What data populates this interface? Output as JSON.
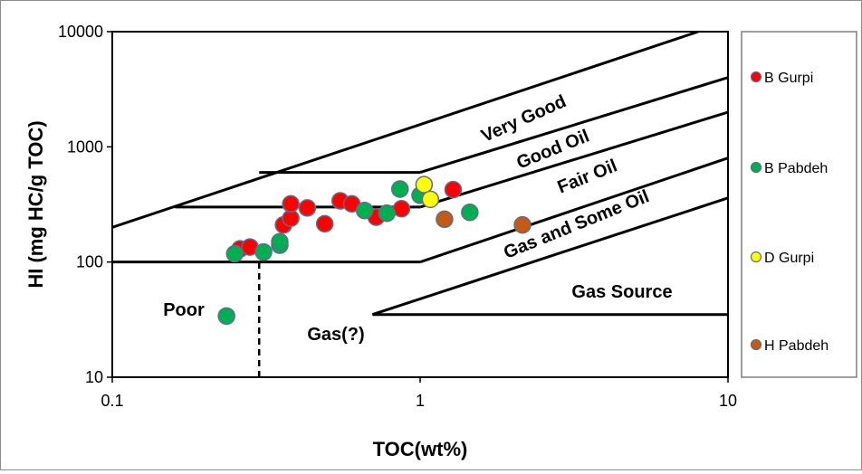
{
  "chart_data": {
    "type": "scatter",
    "title": "",
    "xlabel": "TOC(wt%)",
    "ylabel": "HI (mg HC/g TOC)",
    "x_scale": "log",
    "y_scale": "log",
    "xlim": [
      0.1,
      10
    ],
    "ylim": [
      10,
      10000
    ],
    "x_ticks": [
      0.1,
      1,
      10
    ],
    "x_tick_labels": [
      "0.1",
      "1",
      "10"
    ],
    "y_ticks": [
      10,
      100,
      1000,
      10000
    ],
    "y_tick_labels": [
      "10",
      "100",
      "1000",
      "10000"
    ],
    "grid": false,
    "legend_position": "right",
    "series": [
      {
        "name": "B Gurpi",
        "color": "#ff0000",
        "x": [
          0.26,
          0.28,
          0.36,
          0.38,
          0.38,
          0.43,
          0.49,
          0.55,
          0.6,
          0.72,
          0.87,
          1.28
        ],
        "y": [
          130,
          135,
          210,
          240,
          320,
          295,
          215,
          340,
          320,
          245,
          290,
          425
        ]
      },
      {
        "name": "B Pabdeh",
        "color": "#00b050",
        "x": [
          0.235,
          0.25,
          0.31,
          0.35,
          0.35,
          0.66,
          0.78,
          0.86,
          1.0,
          1.45
        ],
        "y": [
          34,
          118,
          122,
          140,
          150,
          280,
          265,
          430,
          380,
          270
        ]
      },
      {
        "name": "D Gurpi",
        "color": "#ffff00",
        "x": [
          1.03,
          1.08
        ],
        "y": [
          470,
          350
        ]
      },
      {
        "name": "H Pabdeh",
        "color": "#c55a11",
        "x": [
          1.2,
          2.15
        ],
        "y": [
          235,
          210
        ]
      }
    ],
    "annotations": [
      {
        "text": "Very Good"
      },
      {
        "text": "Good Oil"
      },
      {
        "text": "Fair Oil"
      },
      {
        "text": "Gas and Some Oil"
      },
      {
        "text": "Gas Source"
      },
      {
        "text": "Poor"
      },
      {
        "text": "Gas(?)"
      }
    ],
    "boundary_lines": [
      {
        "x": [
          0.1,
          8.0
        ],
        "y": [
          200,
          10000
        ]
      },
      {
        "x": [
          0.3,
          1.0
        ],
        "y": [
          600,
          600
        ]
      },
      {
        "x": [
          1.0,
          10
        ],
        "y": [
          600,
          4000
        ]
      },
      {
        "x": [
          0.16,
          1.0
        ],
        "y": [
          300,
          300
        ]
      },
      {
        "x": [
          1.0,
          10
        ],
        "y": [
          300,
          2000
        ]
      },
      {
        "x": [
          0.1,
          1.0
        ],
        "y": [
          100,
          100
        ]
      },
      {
        "x": [
          1.0,
          10
        ],
        "y": [
          100,
          800
        ]
      },
      {
        "x": [
          0.7,
          10
        ],
        "y": [
          35,
          360
        ]
      },
      {
        "x": [
          0.7,
          10
        ],
        "y": [
          35,
          35
        ]
      }
    ],
    "dashed_lines": [
      {
        "x": [
          0.3,
          0.3
        ],
        "y": [
          10,
          100
        ]
      }
    ]
  }
}
